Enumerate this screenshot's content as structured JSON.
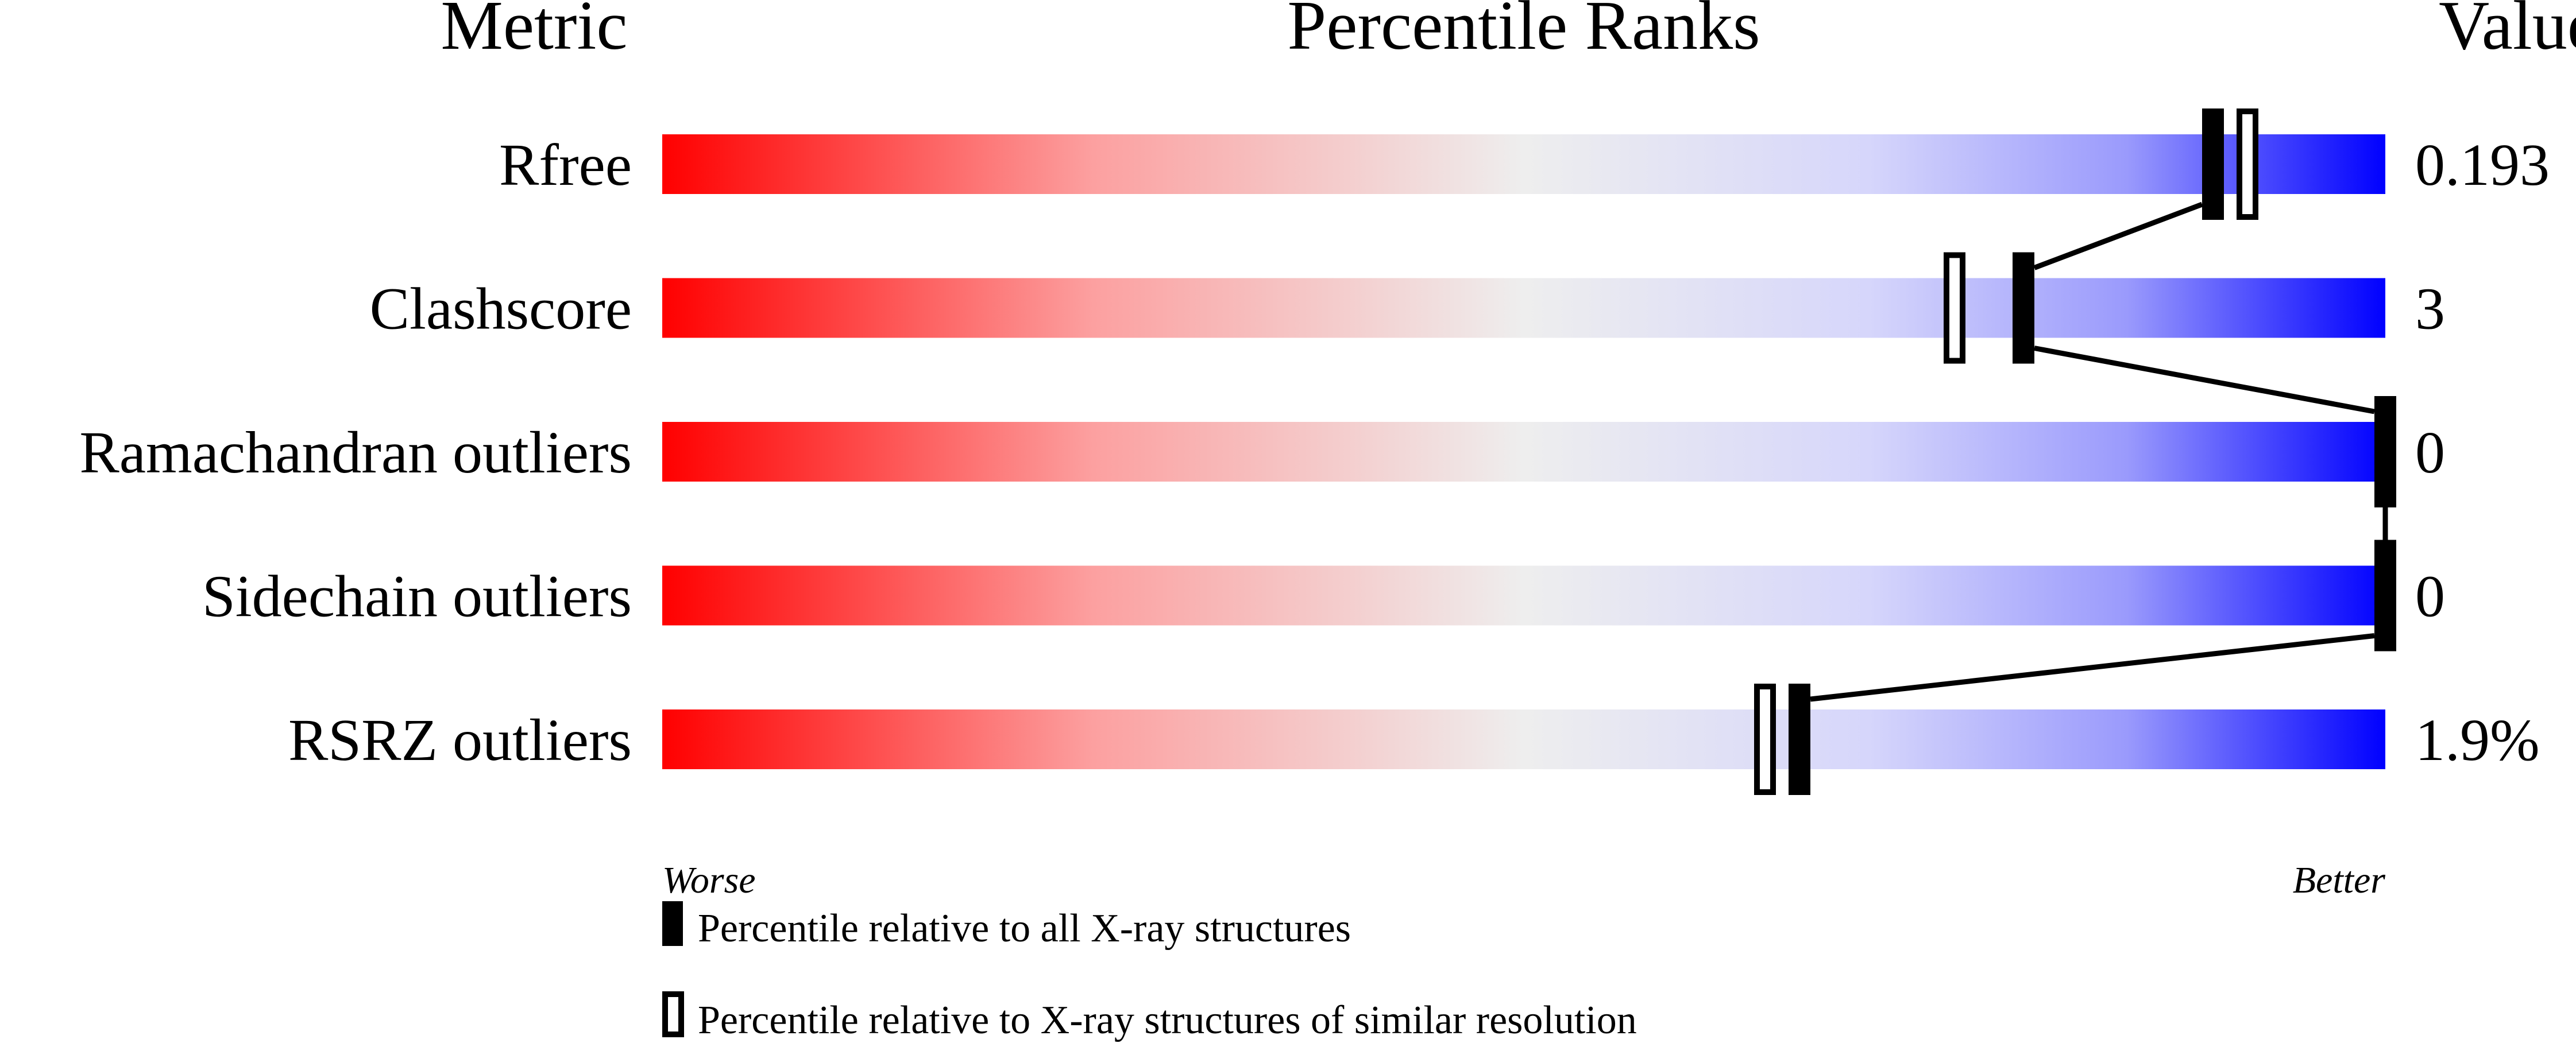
{
  "chart_data": {
    "type": "percentile-slider",
    "headers": {
      "metric": "Metric",
      "ranks": "Percentile Ranks",
      "value": "Value"
    },
    "xlim": [
      0,
      100
    ],
    "metrics": [
      {
        "name": "Rfree",
        "value": "0.193",
        "percentile_all": 90,
        "percentile_similar": 92
      },
      {
        "name": "Clashscore",
        "value": "3",
        "percentile_all": 79,
        "percentile_similar": 75
      },
      {
        "name": "Ramachandran outliers",
        "value": "0",
        "percentile_all": 100,
        "percentile_similar": null
      },
      {
        "name": "Sidechain outliers",
        "value": "0",
        "percentile_all": 100,
        "percentile_similar": null
      },
      {
        "name": "RSRZ outliers",
        "value": "1.9%",
        "percentile_all": 66,
        "percentile_similar": 64
      }
    ],
    "axis_labels": {
      "left": "Worse",
      "right": "Better"
    },
    "legend": [
      {
        "marker": "filled",
        "label": "Percentile relative to all X-ray structures"
      },
      {
        "marker": "open",
        "label": "Percentile relative to X-ray structures of similar resolution"
      }
    ],
    "colors": {
      "worse": "#ff0000",
      "middle": "#eeeeee",
      "better": "#0000ff",
      "marker": "#000000"
    }
  }
}
